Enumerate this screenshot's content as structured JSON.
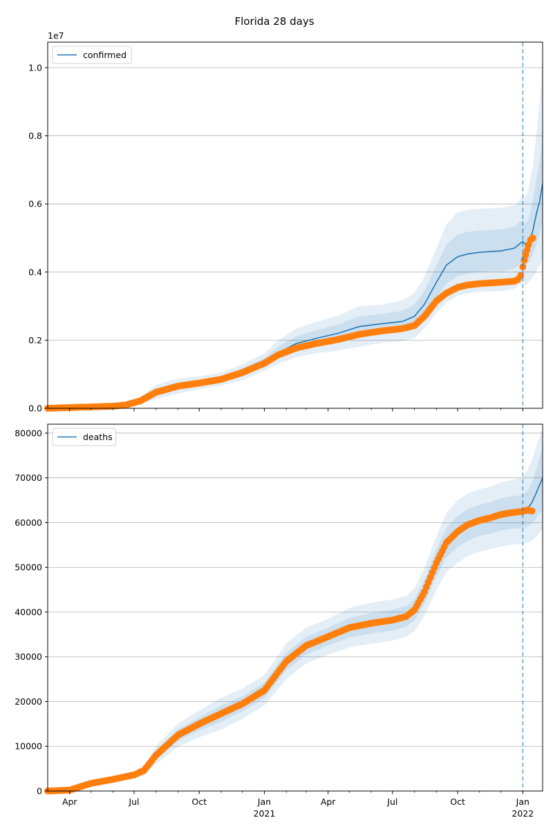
{
  "figure": {
    "title": "Florida 28 days"
  },
  "colors": {
    "model": "#1f77b4",
    "observed": "#ff7f0e",
    "band": "#1f77b4",
    "grid": "#b0b0b0",
    "forecast_marker": "#1f77b4"
  },
  "x_ticks": {
    "major": [
      {
        "date": "2020-04-01",
        "label": "Apr",
        "sublabel": ""
      },
      {
        "date": "2020-07-01",
        "label": "Jul",
        "sublabel": ""
      },
      {
        "date": "2020-10-01",
        "label": "Oct",
        "sublabel": ""
      },
      {
        "date": "2021-01-01",
        "label": "Jan",
        "sublabel": "2021"
      },
      {
        "date": "2021-04-01",
        "label": "Apr",
        "sublabel": ""
      },
      {
        "date": "2021-07-01",
        "label": "Jul",
        "sublabel": ""
      },
      {
        "date": "2021-10-01",
        "label": "Oct",
        "sublabel": ""
      },
      {
        "date": "2022-01-01",
        "label": "Jan",
        "sublabel": "2022"
      }
    ],
    "minor": [
      "2020-05-01",
      "2020-06-01",
      "2020-08-01",
      "2020-09-01",
      "2020-11-01",
      "2020-12-01",
      "2021-02-01",
      "2021-03-01",
      "2021-05-01",
      "2021-06-01",
      "2021-08-01",
      "2021-09-01",
      "2021-11-01",
      "2021-12-01"
    ]
  },
  "chart_data": [
    {
      "type": "line",
      "panel": "top",
      "title": "",
      "xlabel": "",
      "ylabel": "",
      "xlim": [
        "2020-03-01",
        "2022-01-29"
      ],
      "ylim": [
        0,
        10750000
      ],
      "offset_text": "1e7",
      "yticks": [
        {
          "value": 0,
          "label": "0.0"
        },
        {
          "value": 2000000,
          "label": "0.2"
        },
        {
          "value": 4000000,
          "label": "0.4"
        },
        {
          "value": 6000000,
          "label": "0.6"
        },
        {
          "value": 8000000,
          "label": "0.8"
        },
        {
          "value": 10000000,
          "label": "1.0"
        }
      ],
      "grid": "y",
      "legend": {
        "position": "top-left",
        "entries": [
          "confirmed"
        ]
      },
      "forecast_start": "2022-01-01",
      "model": {
        "name": "confirmed",
        "x": [
          "2020-03-01",
          "2020-04-15",
          "2020-06-01",
          "2020-06-20",
          "2020-07-10",
          "2020-08-01",
          "2020-09-01",
          "2020-10-01",
          "2020-11-01",
          "2020-12-01",
          "2021-01-01",
          "2021-01-20",
          "2021-02-15",
          "2021-03-15",
          "2021-04-15",
          "2021-05-15",
          "2021-06-15",
          "2021-07-15",
          "2021-08-01",
          "2021-08-15",
          "2021-09-01",
          "2021-09-15",
          "2021-10-01",
          "2021-10-15",
          "2021-11-01",
          "2021-12-01",
          "2021-12-20",
          "2022-01-01",
          "2022-01-05",
          "2022-01-10",
          "2022-01-15",
          "2022-01-20",
          "2022-01-25",
          "2022-01-29"
        ],
        "y": [
          0,
          30000,
          60000,
          100000,
          220000,
          470000,
          650000,
          740000,
          850000,
          1050000,
          1350000,
          1620000,
          1900000,
          2050000,
          2200000,
          2400000,
          2480000,
          2550000,
          2700000,
          3050000,
          3700000,
          4200000,
          4450000,
          4530000,
          4580000,
          4620000,
          4700000,
          4900000,
          4800000,
          4900000,
          5200000,
          5700000,
          6100000,
          6600000
        ],
        "bands": [
          {
            "lower": [
              0,
              25000,
              50000,
              80000,
              170000,
              370000,
              540000,
              650000,
              760000,
              940000,
              1230000,
              1460000,
              1700000,
              1830000,
              1950000,
              2100000,
              2200000,
              2260000,
              2380000,
              2700000,
              3250000,
              3650000,
              3880000,
              3950000,
              4000000,
              4030000,
              4100000,
              4300000,
              4200000,
              4300000,
              4500000,
              4800000,
              5150000,
              5500000
            ],
            "upper": [
              0,
              35000,
              70000,
              120000,
              270000,
              580000,
              760000,
              840000,
              950000,
              1170000,
              1480000,
              1800000,
              2120000,
              2290000,
              2460000,
              2700000,
              2760000,
              2860000,
              3050000,
              3450000,
              4200000,
              4800000,
              5100000,
              5180000,
              5220000,
              5250000,
              5330000,
              5550000,
              5400000,
              5600000,
              6100000,
              6700000,
              7300000,
              8000000
            ]
          },
          {
            "lower": [
              0,
              20000,
              40000,
              60000,
              120000,
              270000,
              430000,
              560000,
              670000,
              830000,
              1110000,
              1300000,
              1500000,
              1610000,
              1700000,
              1800000,
              1920000,
              1970000,
              2060000,
              2350000,
              2800000,
              3100000,
              3310000,
              3370000,
              3420000,
              3440000,
              3500000,
              3700000,
              3600000,
              3700000,
              3850000,
              4000000,
              4200000,
              4400000
            ],
            "upper": [
              0,
              40000,
              80000,
              140000,
              320000,
              690000,
              870000,
              940000,
              1050000,
              1290000,
              1610000,
              1980000,
              2340000,
              2530000,
              2720000,
              3000000,
              3040000,
              3170000,
              3400000,
              3850000,
              4700000,
              5400000,
              5750000,
              5830000,
              5860000,
              5880000,
              5960000,
              6200000,
              6200000,
              6500000,
              7100000,
              8000000,
              9000000,
              10300000
            ]
          }
        ]
      },
      "observed": {
        "name": "",
        "x": [
          "2020-03-01",
          "2020-04-15",
          "2020-06-01",
          "2020-06-20",
          "2020-07-10",
          "2020-08-01",
          "2020-09-01",
          "2020-10-01",
          "2020-11-01",
          "2020-12-01",
          "2021-01-01",
          "2021-01-20",
          "2021-02-15",
          "2021-03-15",
          "2021-04-15",
          "2021-05-15",
          "2021-06-15",
          "2021-07-15",
          "2021-08-01",
          "2021-08-15",
          "2021-09-01",
          "2021-09-15",
          "2021-10-01",
          "2021-10-15",
          "2021-11-01",
          "2021-12-01",
          "2021-12-20",
          "2021-12-25",
          "2021-12-29",
          "2022-01-01",
          "2022-01-03",
          "2022-01-05",
          "2022-01-07",
          "2022-01-09",
          "2022-01-12",
          "2022-01-15"
        ],
        "y": [
          0,
          30000,
          60000,
          100000,
          220000,
          470000,
          650000,
          740000,
          850000,
          1050000,
          1320000,
          1560000,
          1770000,
          1900000,
          2020000,
          2170000,
          2270000,
          2340000,
          2430000,
          2700000,
          3150000,
          3380000,
          3550000,
          3620000,
          3660000,
          3700000,
          3730000,
          3780000,
          3900000,
          4150000,
          4350000,
          4500000,
          4650000,
          4800000,
          4950000,
          5000000
        ]
      }
    },
    {
      "type": "line",
      "panel": "bottom",
      "title": "",
      "xlabel": "",
      "ylabel": "",
      "xlim": [
        "2020-03-01",
        "2022-01-29"
      ],
      "ylim": [
        0,
        82000
      ],
      "offset_text": "",
      "yticks": [
        {
          "value": 0,
          "label": "0"
        },
        {
          "value": 10000,
          "label": "10000"
        },
        {
          "value": 20000,
          "label": "20000"
        },
        {
          "value": 30000,
          "label": "30000"
        },
        {
          "value": 40000,
          "label": "40000"
        },
        {
          "value": 50000,
          "label": "50000"
        },
        {
          "value": 60000,
          "label": "60000"
        },
        {
          "value": 70000,
          "label": "70000"
        },
        {
          "value": 80000,
          "label": "80000"
        }
      ],
      "grid": "y",
      "legend": {
        "position": "top-left",
        "entries": [
          "deaths"
        ]
      },
      "forecast_start": "2022-01-01",
      "model": {
        "name": "deaths",
        "x": [
          "2020-03-01",
          "2020-04-01",
          "2020-05-01",
          "2020-06-01",
          "2020-07-01",
          "2020-07-15",
          "2020-08-01",
          "2020-09-01",
          "2020-10-01",
          "2020-11-01",
          "2020-12-01",
          "2021-01-01",
          "2021-02-01",
          "2021-03-01",
          "2021-04-01",
          "2021-05-01",
          "2021-06-01",
          "2021-07-01",
          "2021-07-20",
          "2021-08-01",
          "2021-08-15",
          "2021-09-01",
          "2021-09-15",
          "2021-10-01",
          "2021-10-15",
          "2021-11-01",
          "2021-11-15",
          "2021-12-01",
          "2021-12-15",
          "2022-01-01",
          "2022-01-07",
          "2022-01-14",
          "2022-01-21",
          "2022-01-29"
        ],
        "y": [
          0,
          200,
          1700,
          2600,
          3600,
          4600,
          8000,
          12500,
          15000,
          17300,
          19500,
          22500,
          29000,
          32500,
          34500,
          36500,
          37500,
          38200,
          39000,
          40500,
          44500,
          51000,
          55500,
          58000,
          59500,
          60500,
          61000,
          61800,
          62200,
          62500,
          63000,
          64500,
          67000,
          70000
        ],
        "bands": [
          {
            "lower": [
              0,
              180,
              1500,
              2300,
              3200,
              4100,
              7000,
              11200,
              13500,
              15500,
              17800,
              20800,
              27000,
              30500,
              32500,
              34300,
              35200,
              35900,
              36700,
              38100,
              41800,
              48000,
              52200,
              54500,
              56000,
              57000,
              57500,
              58200,
              58600,
              58800,
              59000,
              59800,
              61200,
              63000
            ],
            "upper": [
              0,
              220,
              1900,
              2900,
              4000,
              5100,
              9000,
              13800,
              16500,
              19100,
              21200,
              24200,
              31000,
              34500,
              36500,
              38700,
              39800,
              40500,
              41300,
              42900,
              47200,
              54000,
              58800,
              61500,
              63000,
              64000,
              64500,
              65400,
              65800,
              66200,
              67000,
              69000,
              72500,
              77000
            ]
          },
          {
            "lower": [
              0,
              160,
              1300,
              2000,
              2800,
              3600,
              6000,
              9900,
              12000,
              13700,
              16100,
              19100,
              25000,
              28500,
              30500,
              32100,
              32900,
              33600,
              34400,
              35700,
              39100,
              45000,
              48900,
              51000,
              52500,
              53500,
              54000,
              54600,
              55000,
              55200,
              55500,
              56000,
              57000,
              58500
            ],
            "upper": [
              0,
              240,
              2100,
              3200,
              4400,
              5600,
              10000,
              15100,
              18000,
              20900,
              22900,
              25900,
              33000,
              36500,
              38500,
              40900,
              42100,
              42800,
              43600,
              45300,
              49900,
              57000,
              62100,
              65000,
              66500,
              67500,
              68000,
              69000,
              69500,
              70000,
              71500,
              74000,
              77500,
              81000
            ]
          }
        ]
      },
      "observed": {
        "name": "",
        "x": [
          "2020-03-01",
          "2020-04-01",
          "2020-05-01",
          "2020-06-01",
          "2020-07-01",
          "2020-07-15",
          "2020-08-01",
          "2020-09-01",
          "2020-10-01",
          "2020-11-01",
          "2020-12-01",
          "2021-01-01",
          "2021-02-01",
          "2021-03-01",
          "2021-04-01",
          "2021-05-01",
          "2021-06-01",
          "2021-07-01",
          "2021-07-20",
          "2021-08-01",
          "2021-08-15",
          "2021-09-01",
          "2021-09-15",
          "2021-10-01",
          "2021-10-15",
          "2021-11-01",
          "2021-11-15",
          "2021-12-01",
          "2021-12-15",
          "2022-01-01",
          "2022-01-07",
          "2022-01-14"
        ],
        "y": [
          0,
          200,
          1700,
          2600,
          3600,
          4600,
          8000,
          12500,
          15000,
          17300,
          19500,
          22500,
          29000,
          32500,
          34500,
          36500,
          37500,
          38200,
          39000,
          40500,
          44500,
          51000,
          55500,
          58000,
          59500,
          60500,
          61000,
          61800,
          62200,
          62500,
          62800,
          62600
        ]
      }
    }
  ]
}
